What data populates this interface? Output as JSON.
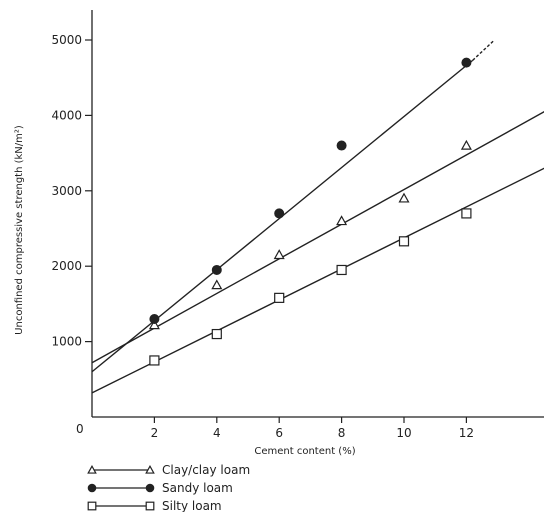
{
  "chart_data": {
    "type": "scatter",
    "title": "",
    "xlabel": "Cement content (%)",
    "ylabel": "Unconfined compressive strength (kN/m²)",
    "xlim": [
      0,
      14.5
    ],
    "ylim": [
      0,
      5300
    ],
    "x_ticks": [
      2,
      4,
      6,
      8,
      10,
      12
    ],
    "x_tick_labels": [
      "2",
      "4",
      "6",
      "8",
      "10",
      "12"
    ],
    "y_ticks": [
      1000,
      2000,
      3000,
      4000,
      5000
    ],
    "y_tick_labels": [
      "1000",
      "2000",
      "3000",
      "4000",
      "5000"
    ],
    "origin_label": "0",
    "grid": false,
    "legend_position": "bottom-left",
    "series": [
      {
        "name": "Clay/clay loam",
        "marker": "triangle",
        "color": "#222222",
        "x": [
          2,
          4,
          6,
          8,
          10,
          12
        ],
        "y": [
          1220,
          1750,
          2150,
          2600,
          2900,
          3600
        ],
        "fit": {
          "x": [
            0,
            14.5
          ],
          "y": [
            720,
            4050
          ]
        }
      },
      {
        "name": "Sandy loam",
        "marker": "filled-circle",
        "color": "#222222",
        "x": [
          2,
          4,
          6,
          8,
          12
        ],
        "y": [
          1300,
          1950,
          2700,
          3600,
          4700
        ],
        "fit": {
          "x": [
            0,
            12.2
          ],
          "y": [
            600,
            4730
          ]
        },
        "dashed_extension": {
          "x": [
            12.2,
            12.9
          ],
          "y": [
            4730,
            5000
          ]
        }
      },
      {
        "name": "Silty loam",
        "marker": "square",
        "color": "#222222",
        "x": [
          2,
          4,
          6,
          8,
          10,
          12
        ],
        "y": [
          750,
          1100,
          1580,
          1950,
          2330,
          2700
        ],
        "fit": {
          "x": [
            0,
            14.5
          ],
          "y": [
            320,
            3300
          ]
        }
      }
    ]
  }
}
